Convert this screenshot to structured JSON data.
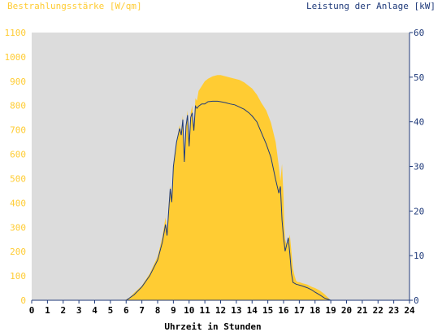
{
  "chart_data": {
    "type": "area",
    "title_left": "Bestrahlungsstärke [W/qm]",
    "title_right": "Leistung der Anlage [kW]",
    "xlabel": "Uhrzeit in Stunden",
    "x_ticks": [
      "0",
      "1",
      "2",
      "3",
      "4",
      "5",
      "6",
      "7",
      "8",
      "9",
      "10",
      "11",
      "12",
      "13",
      "14",
      "15",
      "16",
      "17",
      "18",
      "19",
      "20",
      "21",
      "22",
      "23",
      "24"
    ],
    "xlim": [
      0,
      24
    ],
    "y_left": {
      "lim": [
        0,
        1100
      ],
      "ticks": [
        "0",
        "100",
        "200",
        "300",
        "400",
        "500",
        "600",
        "700",
        "800",
        "900",
        "1000",
        "1100"
      ]
    },
    "y_right": {
      "lim": [
        0,
        60
      ],
      "ticks": [
        "0",
        "10",
        "20",
        "30",
        "40",
        "50",
        "60"
      ]
    },
    "grid": false,
    "colors": {
      "irradiance": "#ffcc33",
      "power": "#1f3a7a",
      "plot_bg": "#dcdcdc",
      "axis": "#1f3a7a"
    },
    "series": [
      {
        "axis": "left",
        "type": "area",
        "x": [
          0,
          5.9,
          6.2,
          6.5,
          7.0,
          7.5,
          8.0,
          8.3,
          8.5,
          8.6,
          8.7,
          8.8,
          8.9,
          9.0,
          9.2,
          9.4,
          9.5,
          9.6,
          9.7,
          9.8,
          9.9,
          10.0,
          10.1,
          10.2,
          10.3,
          10.4,
          10.5,
          10.6,
          10.8,
          11.0,
          11.2,
          11.5,
          11.8,
          12.0,
          12.3,
          12.6,
          12.9,
          13.2,
          13.5,
          13.8,
          14.0,
          14.3,
          14.6,
          14.9,
          15.2,
          15.5,
          15.7,
          15.8,
          15.9,
          16.0,
          16.05,
          16.1,
          16.2,
          16.3,
          16.4,
          16.5,
          16.6,
          16.7,
          16.8,
          16.9,
          17.0,
          17.2,
          17.5,
          17.8,
          18.0,
          18.3,
          18.6,
          19.0,
          24
        ],
        "values": [
          0,
          0,
          10,
          30,
          60,
          110,
          180,
          260,
          340,
          290,
          390,
          470,
          430,
          560,
          650,
          720,
          690,
          760,
          560,
          720,
          780,
          640,
          770,
          800,
          700,
          830,
          820,
          860,
          880,
          900,
          910,
          920,
          925,
          925,
          920,
          915,
          910,
          905,
          895,
          880,
          870,
          845,
          810,
          780,
          730,
          650,
          550,
          490,
          560,
          420,
          300,
          250,
          230,
          240,
          270,
          200,
          130,
          100,
          80,
          75,
          75,
          70,
          65,
          55,
          50,
          40,
          25,
          0,
          0
        ]
      },
      {
        "axis": "right",
        "type": "line",
        "x": [
          0,
          6.0,
          6.5,
          7.0,
          7.5,
          8.0,
          8.3,
          8.5,
          8.6,
          8.7,
          8.8,
          8.9,
          9.0,
          9.2,
          9.4,
          9.5,
          9.6,
          9.7,
          9.8,
          9.9,
          10.0,
          10.1,
          10.2,
          10.3,
          10.4,
          10.5,
          10.6,
          10.8,
          11.0,
          11.2,
          11.5,
          11.8,
          12.0,
          12.3,
          12.6,
          12.9,
          13.2,
          13.5,
          13.8,
          14.0,
          14.3,
          14.6,
          14.9,
          15.2,
          15.5,
          15.7,
          15.8,
          15.9,
          16.0,
          16.05,
          16.1,
          16.2,
          16.3,
          16.4,
          16.5,
          16.6,
          16.7,
          16.8,
          16.9,
          17.0,
          17.2,
          17.5,
          17.8,
          18.0,
          18.3,
          18.6,
          19.0,
          24
        ],
        "values": [
          0,
          0,
          1.2,
          3.0,
          5.5,
          9.0,
          13.0,
          17.0,
          14.5,
          20.0,
          25.0,
          22.0,
          30.0,
          35.5,
          38.5,
          37.0,
          40.5,
          31.0,
          39.0,
          41.5,
          34.5,
          41.0,
          42.0,
          38.0,
          43.5,
          43.0,
          43.5,
          44.0,
          44.0,
          44.5,
          44.6,
          44.6,
          44.5,
          44.3,
          44.0,
          43.8,
          43.3,
          42.8,
          42.0,
          41.3,
          40.0,
          37.5,
          35.0,
          32.0,
          27.0,
          24.0,
          25.5,
          18.0,
          14.0,
          12.5,
          11.0,
          12.5,
          14.0,
          10.5,
          6.0,
          4.0,
          3.8,
          3.6,
          3.5,
          3.4,
          3.2,
          2.8,
          2.3,
          1.8,
          1.2,
          0.5,
          0,
          0
        ]
      }
    ]
  }
}
